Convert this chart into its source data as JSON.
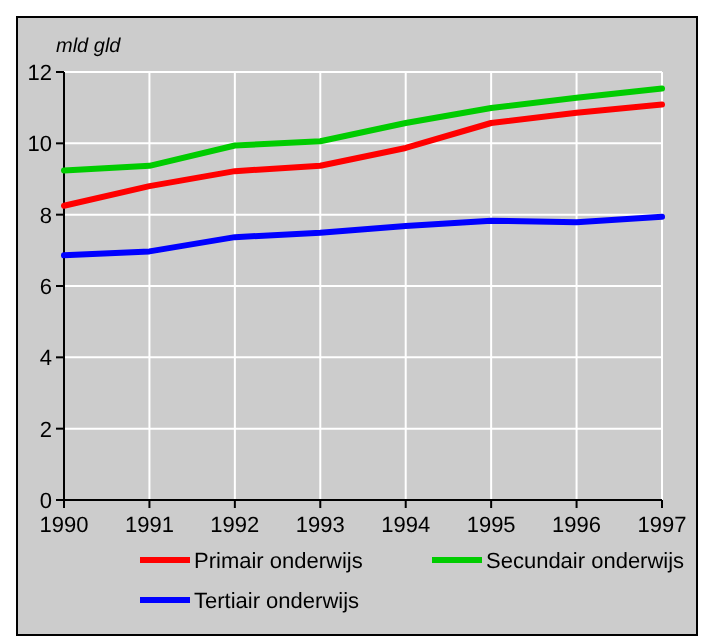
{
  "chart_data": {
    "type": "line",
    "ylabel": "mld gld",
    "x": [
      1990,
      1991,
      1992,
      1993,
      1994,
      1995,
      1996,
      1997
    ],
    "xlim": [
      1990,
      1997
    ],
    "xticks": [
      1990,
      1991,
      1992,
      1993,
      1994,
      1995,
      1996,
      1997
    ],
    "ylim": [
      0,
      12
    ],
    "yticks": [
      0,
      2,
      4,
      6,
      8,
      10,
      12
    ],
    "grid": true,
    "legend": "bottom",
    "line_style": "solid",
    "series": [
      {
        "name": "Primair onderwijs",
        "color": "#ff0000",
        "values": [
          8.25,
          8.8,
          9.22,
          9.37,
          9.87,
          10.57,
          10.86,
          11.09
        ]
      },
      {
        "name": "Secundair onderwijs",
        "color": "#00cc00",
        "values": [
          9.24,
          9.37,
          9.94,
          10.06,
          10.57,
          10.99,
          11.28,
          11.54
        ]
      },
      {
        "name": "Tertiair onderwijs",
        "color": "#0000ff",
        "values": [
          6.86,
          6.97,
          7.37,
          7.49,
          7.68,
          7.83,
          7.79,
          7.94
        ]
      }
    ]
  }
}
